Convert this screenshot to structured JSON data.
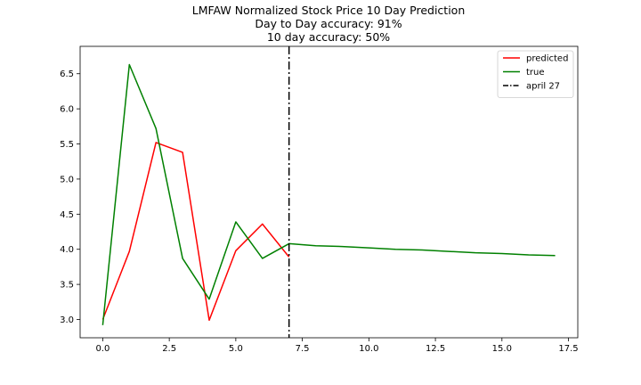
{
  "chart_data": {
    "type": "line",
    "title": [
      "LMFAW Normalized Stock Price 10 Day Prediction",
      "Day to Day accuracy: 91%",
      "10 day accuracy: 50%"
    ],
    "xlabel": "",
    "ylabel": "",
    "xlim": [
      -0.85,
      17.85
    ],
    "ylim": [
      2.74,
      6.89
    ],
    "x_ticks": [
      0.0,
      2.5,
      5.0,
      7.5,
      10.0,
      12.5,
      15.0,
      17.5
    ],
    "x_tick_labels": [
      "0.0",
      "2.5",
      "5.0",
      "7.5",
      "10.0",
      "12.5",
      "15.0",
      "17.5"
    ],
    "y_ticks": [
      3.0,
      3.5,
      4.0,
      4.5,
      5.0,
      5.5,
      6.0,
      6.5
    ],
    "y_tick_labels": [
      "3.0",
      "3.5",
      "4.0",
      "4.5",
      "5.0",
      "5.5",
      "6.0",
      "6.5"
    ],
    "grid": false,
    "legend_position": "top-right",
    "series": [
      {
        "name": "predicted",
        "color": "#ff0000",
        "x": [
          0,
          1,
          2,
          3,
          4,
          5,
          6,
          7
        ],
        "y": [
          3.0,
          3.97,
          5.52,
          5.38,
          2.99,
          3.98,
          4.36,
          3.89
        ]
      },
      {
        "name": "true",
        "color": "#008000",
        "x": [
          0,
          1,
          2,
          3,
          4,
          5,
          6,
          7,
          8,
          9,
          10,
          11,
          12,
          13,
          14,
          15,
          16,
          17
        ],
        "y": [
          2.92,
          6.63,
          5.72,
          3.87,
          3.29,
          4.39,
          3.87,
          4.08,
          4.05,
          4.04,
          4.02,
          4.0,
          3.99,
          3.97,
          3.95,
          3.94,
          3.92,
          3.91
        ]
      }
    ],
    "vlines": [
      {
        "name": "april 27",
        "x": 7,
        "color": "#000000",
        "style": "dashdot"
      }
    ]
  }
}
